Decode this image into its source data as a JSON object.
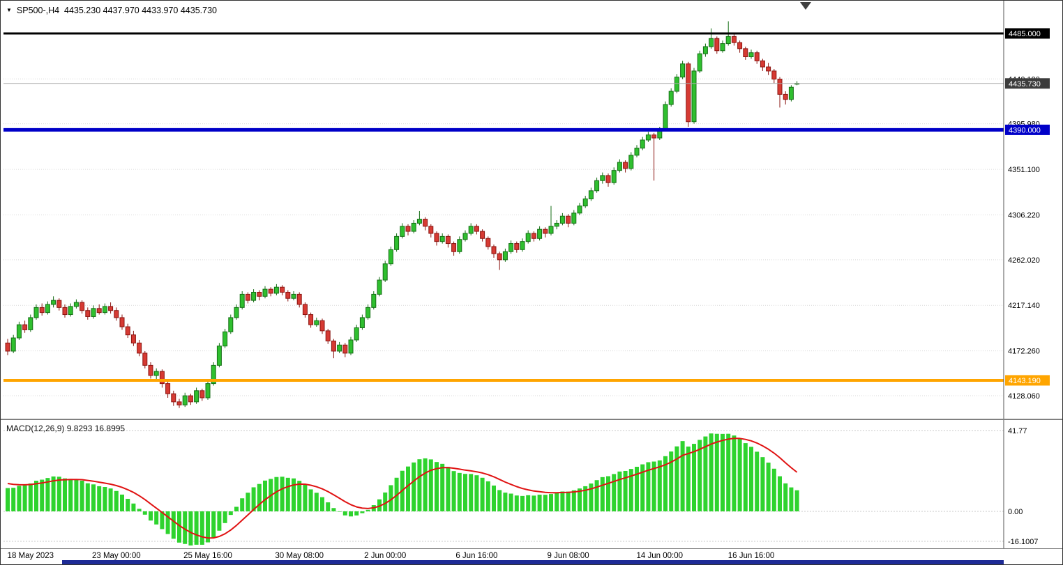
{
  "quote_line": "SP500-,H4  4435.230 4437.970 4433.970 4435.730",
  "macd_line": "MACD(12,26,9) 9.8293 16.8995",
  "colors": {
    "background": "#ffffff",
    "candle_up": "#2fbf2f",
    "candle_up_border": "#156e15",
    "candle_down": "#d63a33",
    "candle_down_border": "#8a1410",
    "macd_hist": "#2ed32e",
    "macd_signal": "#e01212",
    "line_black": "#000000",
    "line_blue": "#0000c8",
    "line_orange": "#ffa500",
    "current_tag_bg": "#3c3c3c",
    "grid": "#d9d9d9",
    "axis_text": "#000000",
    "bottom_bar": "#1e2b96"
  },
  "chart_data": {
    "type": "candlestick",
    "symbol": "SP500-",
    "timeframe": "H4",
    "ohlc_current": {
      "open": "4435.230",
      "high": "4437.970",
      "low": "4433.970",
      "close": "4435.730"
    },
    "price_axis_ticks": [
      {
        "value": 4440.19,
        "text": "4440.190"
      },
      {
        "value": 4395.98,
        "text": "4395.980"
      },
      {
        "value": 4351.1,
        "text": "4351.100"
      },
      {
        "value": 4306.22,
        "text": "4306.220"
      },
      {
        "value": 4262.02,
        "text": "4262.020"
      },
      {
        "value": 4217.14,
        "text": "4217.140"
      },
      {
        "value": 4172.26,
        "text": "4172.260"
      },
      {
        "value": 4128.06,
        "text": "4128.060"
      }
    ],
    "price_tags": [
      {
        "value": 4485.0,
        "text": "4485.000",
        "bg": "#000000",
        "name": "price-tag-resistance"
      },
      {
        "value": 4435.73,
        "text": "4435.730",
        "bg": "#3c3c3c",
        "name": "price-tag-current"
      },
      {
        "value": 4390.0,
        "text": "4390.000",
        "bg": "#0000c8",
        "name": "price-tag-support-blue"
      },
      {
        "value": 4143.19,
        "text": "4143.190",
        "bg": "#ffa500",
        "name": "price-tag-support-orange"
      }
    ],
    "horizontal_lines": [
      {
        "value": 4485.0,
        "color": "#000000",
        "width": 3,
        "name": "hline-4485"
      },
      {
        "value": 4435.73,
        "color": "#aaaaaa",
        "width": 1,
        "name": "current-price-line"
      },
      {
        "value": 4390.0,
        "color": "#0000c8",
        "width": 5,
        "name": "hline-4390"
      },
      {
        "value": 4143.19,
        "color": "#ffa500",
        "width": 4,
        "name": "hline-4143"
      }
    ],
    "time_labels": [
      {
        "index": 4,
        "text": "18 May 2023"
      },
      {
        "index": 19,
        "text": "23 May 00:00"
      },
      {
        "index": 35,
        "text": "25 May 16:00"
      },
      {
        "index": 51,
        "text": "30 May 08:00"
      },
      {
        "index": 66,
        "text": "2 Jun 00:00"
      },
      {
        "index": 82,
        "text": "6 Jun 16:00"
      },
      {
        "index": 98,
        "text": "9 Jun 08:00"
      },
      {
        "index": 114,
        "text": "14 Jun 00:00"
      },
      {
        "index": 130,
        "text": "16 Jun 16:00"
      }
    ],
    "indicator": {
      "type": "MACD",
      "params": [
        12,
        26,
        9
      ],
      "main_value": 9.8293,
      "signal_value": 16.8995,
      "axis_labels": [
        {
          "value": 41.77,
          "text": "41.77"
        },
        {
          "value": 0,
          "text": "0.00"
        },
        {
          "value": -16.1007,
          "text": "-16.1007"
        }
      ]
    },
    "candles_ohlc": [
      [
        4180,
        4184,
        4168,
        4172
      ],
      [
        4172,
        4188,
        4170,
        4185
      ],
      [
        4185,
        4201,
        4183,
        4198
      ],
      [
        4198,
        4202,
        4190,
        4193
      ],
      [
        4193,
        4208,
        4191,
        4205
      ],
      [
        4205,
        4218,
        4203,
        4215
      ],
      [
        4215,
        4219,
        4207,
        4210
      ],
      [
        4210,
        4221,
        4208,
        4218
      ],
      [
        4218,
        4226,
        4215,
        4222
      ],
      [
        4222,
        4224,
        4212,
        4215
      ],
      [
        4215,
        4218,
        4205,
        4208
      ],
      [
        4208,
        4219,
        4206,
        4216
      ],
      [
        4216,
        4223,
        4214,
        4220
      ],
      [
        4220,
        4222,
        4209,
        4212
      ],
      [
        4212,
        4215,
        4203,
        4206
      ],
      [
        4206,
        4217,
        4204,
        4214
      ],
      [
        4214,
        4218,
        4208,
        4210
      ],
      [
        4210,
        4219,
        4208,
        4216
      ],
      [
        4216,
        4220,
        4209,
        4212
      ],
      [
        4212,
        4215,
        4202,
        4205
      ],
      [
        4205,
        4208,
        4193,
        4196
      ],
      [
        4196,
        4199,
        4185,
        4188
      ],
      [
        4188,
        4192,
        4177,
        4180
      ],
      [
        4180,
        4183,
        4167,
        4170
      ],
      [
        4170,
        4172,
        4155,
        4158
      ],
      [
        4158,
        4161,
        4145,
        4148
      ],
      [
        4148,
        4155,
        4144,
        4152
      ],
      [
        4152,
        4154,
        4136,
        4140
      ],
      [
        4140,
        4143,
        4126,
        4130
      ],
      [
        4130,
        4133,
        4118,
        4122
      ],
      [
        4122,
        4125,
        4116,
        4119
      ],
      [
        4119,
        4131,
        4117,
        4128
      ],
      [
        4128,
        4130,
        4119,
        4122
      ],
      [
        4122,
        4136,
        4120,
        4133
      ],
      [
        4133,
        4135,
        4123,
        4126
      ],
      [
        4126,
        4143,
        4124,
        4140
      ],
      [
        4140,
        4161,
        4138,
        4158
      ],
      [
        4158,
        4180,
        4156,
        4177
      ],
      [
        4177,
        4194,
        4175,
        4191
      ],
      [
        4191,
        4208,
        4189,
        4205
      ],
      [
        4205,
        4218,
        4203,
        4215
      ],
      [
        4215,
        4231,
        4213,
        4228
      ],
      [
        4228,
        4230,
        4219,
        4222
      ],
      [
        4222,
        4233,
        4220,
        4230
      ],
      [
        4230,
        4232,
        4222,
        4226
      ],
      [
        4226,
        4236,
        4224,
        4233
      ],
      [
        4233,
        4235,
        4226,
        4229
      ],
      [
        4229,
        4238,
        4227,
        4235
      ],
      [
        4235,
        4237,
        4227,
        4230
      ],
      [
        4230,
        4232,
        4221,
        4224
      ],
      [
        4224,
        4231,
        4222,
        4228
      ],
      [
        4228,
        4230,
        4215,
        4218
      ],
      [
        4218,
        4220,
        4205,
        4208
      ],
      [
        4208,
        4210,
        4195,
        4198
      ],
      [
        4198,
        4205,
        4196,
        4202
      ],
      [
        4202,
        4204,
        4189,
        4192
      ],
      [
        4192,
        4194,
        4179,
        4182
      ],
      [
        4182,
        4184,
        4165,
        4172
      ],
      [
        4172,
        4181,
        4170,
        4178
      ],
      [
        4178,
        4180,
        4166,
        4170
      ],
      [
        4170,
        4186,
        4168,
        4183
      ],
      [
        4183,
        4198,
        4181,
        4195
      ],
      [
        4195,
        4208,
        4193,
        4205
      ],
      [
        4205,
        4218,
        4203,
        4215
      ],
      [
        4215,
        4231,
        4213,
        4228
      ],
      [
        4228,
        4245,
        4226,
        4242
      ],
      [
        4242,
        4261,
        4240,
        4258
      ],
      [
        4258,
        4275,
        4256,
        4272
      ],
      [
        4272,
        4288,
        4270,
        4285
      ],
      [
        4285,
        4298,
        4283,
        4295
      ],
      [
        4295,
        4297,
        4286,
        4290
      ],
      [
        4290,
        4301,
        4288,
        4298
      ],
      [
        4298,
        4310,
        4296,
        4302
      ],
      [
        4302,
        4304,
        4291,
        4295
      ],
      [
        4295,
        4297,
        4284,
        4288
      ],
      [
        4288,
        4290,
        4276,
        4280
      ],
      [
        4280,
        4288,
        4278,
        4285
      ],
      [
        4285,
        4287,
        4274,
        4278
      ],
      [
        4278,
        4280,
        4266,
        4270
      ],
      [
        4270,
        4285,
        4268,
        4282
      ],
      [
        4282,
        4291,
        4280,
        4288
      ],
      [
        4288,
        4298,
        4286,
        4295
      ],
      [
        4295,
        4297,
        4287,
        4290
      ],
      [
        4290,
        4292,
        4280,
        4283
      ],
      [
        4283,
        4285,
        4272,
        4275
      ],
      [
        4275,
        4277,
        4264,
        4268
      ],
      [
        4268,
        4270,
        4252,
        4262
      ],
      [
        4262,
        4273,
        4260,
        4270
      ],
      [
        4270,
        4281,
        4268,
        4278
      ],
      [
        4278,
        4280,
        4269,
        4272
      ],
      [
        4272,
        4283,
        4270,
        4280
      ],
      [
        4280,
        4291,
        4278,
        4288
      ],
      [
        4288,
        4290,
        4280,
        4283
      ],
      [
        4283,
        4295,
        4281,
        4292
      ],
      [
        4292,
        4294,
        4284,
        4288
      ],
      [
        4288,
        4315,
        4286,
        4295
      ],
      [
        4295,
        4301,
        4292,
        4298
      ],
      [
        4298,
        4308,
        4296,
        4305
      ],
      [
        4305,
        4307,
        4294,
        4298
      ],
      [
        4298,
        4311,
        4296,
        4308
      ],
      [
        4308,
        4318,
        4306,
        4315
      ],
      [
        4315,
        4325,
        4313,
        4322
      ],
      [
        4322,
        4333,
        4320,
        4330
      ],
      [
        4330,
        4343,
        4328,
        4340
      ],
      [
        4340,
        4348,
        4337,
        4345
      ],
      [
        4345,
        4347,
        4334,
        4338
      ],
      [
        4338,
        4353,
        4336,
        4350
      ],
      [
        4350,
        4361,
        4348,
        4358
      ],
      [
        4358,
        4360,
        4348,
        4352
      ],
      [
        4352,
        4368,
        4350,
        4365
      ],
      [
        4365,
        4375,
        4363,
        4372
      ],
      [
        4372,
        4383,
        4370,
        4380
      ],
      [
        4380,
        4388,
        4378,
        4385
      ],
      [
        4385,
        4387,
        4340,
        4382
      ],
      [
        4382,
        4393,
        4380,
        4390
      ],
      [
        4390,
        4418,
        4389,
        4415
      ],
      [
        4415,
        4431,
        4413,
        4428
      ],
      [
        4428,
        4445,
        4426,
        4442
      ],
      [
        4442,
        4458,
        4440,
        4455
      ],
      [
        4455,
        4457,
        4393,
        4398
      ],
      [
        4398,
        4451,
        4396,
        4448
      ],
      [
        4448,
        4468,
        4446,
        4465
      ],
      [
        4465,
        4475,
        4462,
        4472
      ],
      [
        4472,
        4490,
        4470,
        4480
      ],
      [
        4480,
        4482,
        4465,
        4468
      ],
      [
        4468,
        4478,
        4466,
        4475
      ],
      [
        4475,
        4497,
        4473,
        4482
      ],
      [
        4482,
        4484,
        4473,
        4476
      ],
      [
        4476,
        4478,
        4466,
        4470
      ],
      [
        4470,
        4472,
        4459,
        4462
      ],
      [
        4462,
        4469,
        4460,
        4466
      ],
      [
        4466,
        4468,
        4455,
        4458
      ],
      [
        4458,
        4460,
        4448,
        4452
      ],
      [
        4452,
        4456,
        4444,
        4448
      ],
      [
        4448,
        4450,
        4436,
        4440
      ],
      [
        4440,
        4442,
        4412,
        4425
      ],
      [
        4425,
        4428,
        4415,
        4420
      ],
      [
        4420,
        4434,
        4418,
        4432
      ],
      [
        4435.23,
        4437.97,
        4433.97,
        4435.73
      ]
    ]
  }
}
